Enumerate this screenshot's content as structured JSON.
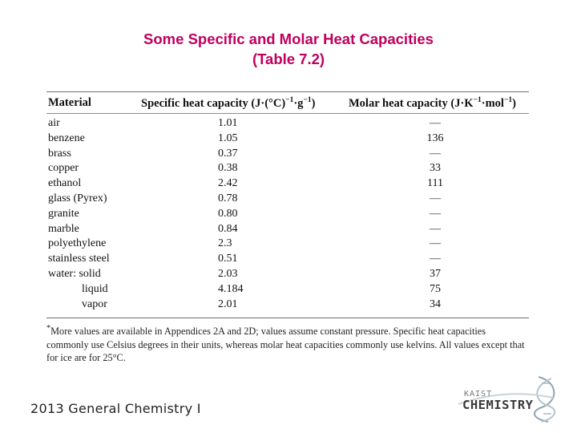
{
  "title": {
    "line1": "Some Specific and Molar Heat Capacities",
    "line2": "(Table 7.2)"
  },
  "table": {
    "headers": {
      "material": "Material",
      "specific_pre": "Specific heat capacity (J·(°C)",
      "specific_sup1": "−1",
      "specific_mid": "·g",
      "specific_sup2": "−1",
      "specific_post": ")",
      "molar_pre": "Molar heat capacity (J·K",
      "molar_sup1": "−1",
      "molar_mid": "·mol",
      "molar_sup2": "−1",
      "molar_post": ")"
    },
    "rows": [
      {
        "material": "air",
        "specific": "1.01",
        "molar": "—"
      },
      {
        "material": "benzene",
        "specific": "1.05",
        "molar": "136"
      },
      {
        "material": "brass",
        "specific": "0.37",
        "molar": "—"
      },
      {
        "material": "copper",
        "specific": "0.38",
        "molar": "33"
      },
      {
        "material": "ethanol",
        "specific": "2.42",
        "molar": "111"
      },
      {
        "material": "glass (Pyrex)",
        "specific": "0.78",
        "molar": "—"
      },
      {
        "material": "granite",
        "specific": "0.80",
        "molar": "—"
      },
      {
        "material": "marble",
        "specific": "0.84",
        "molar": "—"
      },
      {
        "material": "polyethylene",
        "specific": "2.3",
        "molar": "—"
      },
      {
        "material": "stainless steel",
        "specific": "0.51",
        "molar": "—"
      },
      {
        "material": "water: solid",
        "specific": "2.03",
        "molar": "37"
      },
      {
        "material": "liquid",
        "specific": "4.184",
        "molar": "75"
      },
      {
        "material": "vapor",
        "specific": "2.01",
        "molar": "34"
      }
    ]
  },
  "footnote": {
    "marker": "*",
    "text": "More values are available in Appendices 2A and 2D; values assume constant pressure. Specific heat capacities commonly use Celsius degrees in their units, whereas molar heat capacities commonly use kelvins. All values except that for ice are for 25°C."
  },
  "footer": {
    "course": "2013 General Chemistry I"
  },
  "logo": {
    "top": "KAIST",
    "bottom": "CHEMISTRY",
    "icon": "dna-helix-icon"
  }
}
